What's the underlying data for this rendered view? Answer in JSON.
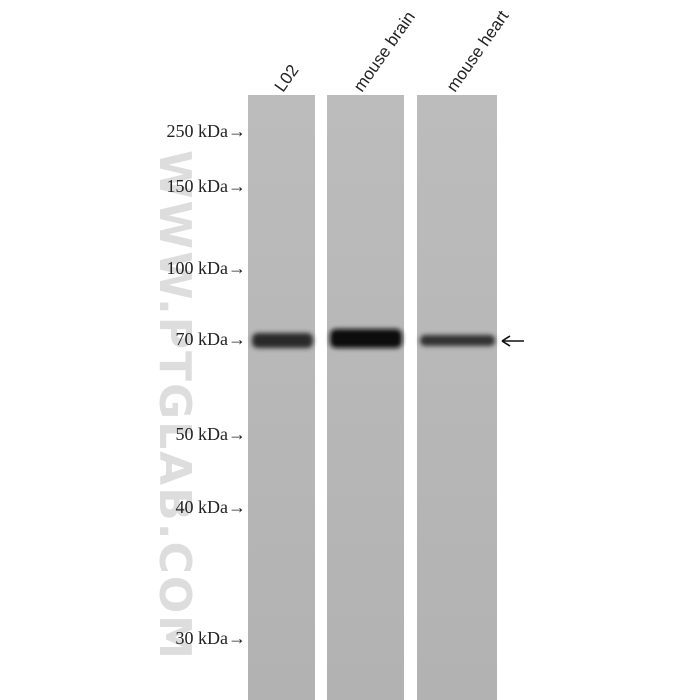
{
  "lanes": [
    "L02",
    "mouse brain",
    "mouse heart"
  ],
  "markers": [
    "250 kDa→",
    "150 kDa→",
    "100 kDa→",
    "70 kDa→",
    "50 kDa→",
    "40 kDa→",
    "30 kDa→"
  ],
  "watermark": "WWW.PTGLAB.COM"
}
